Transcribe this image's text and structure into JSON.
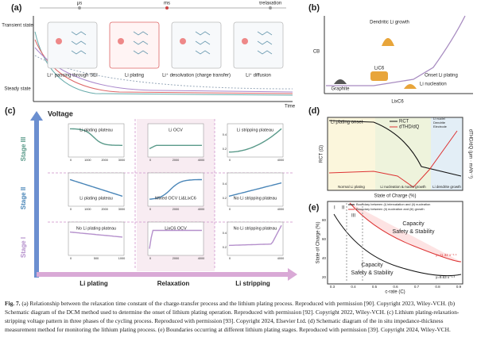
{
  "panel_a": {
    "label": "(a)",
    "state_top": "Transient state",
    "state_bottom": "Steady state",
    "x_label": "Time",
    "time_marks": [
      "μs",
      "ms",
      "τrelaxation"
    ],
    "steps": [
      "Li⁺ passing through SEI",
      "Li plating",
      "Li⁺ desolvation (charge transfer)",
      "Li⁺ diffusion"
    ]
  },
  "panel_b": {
    "label": "(b)",
    "y_label": "CB",
    "x_label": "LixC6",
    "dendrite": "Dendritic Li growth",
    "lic6": "LiC6",
    "onset": "Onset Li plating",
    "graphite": "Graphite",
    "nucleation": "Li nucleation"
  },
  "panel_c": {
    "label": "(c)",
    "y_label": "Voltage",
    "stages": [
      "Stage III",
      "Stage II",
      "Stage I"
    ],
    "columns": [
      "Li plating",
      "Relaxation",
      "Li stripping"
    ],
    "cells": [
      {
        "label": "Li plating plateau",
        "xticks": [
          "0",
          "1000",
          "2000",
          "3000"
        ],
        "yticks": []
      },
      {
        "label": "Li OCV",
        "xticks": [
          "0",
          "2000",
          "4000"
        ],
        "yticks": []
      },
      {
        "label": "Li stripping plateau",
        "xticks": [
          "0",
          "4000"
        ],
        "yticks": [
          "0.2",
          "0.4"
        ]
      },
      {
        "label": "Li plating plateau",
        "xticks": [
          "0",
          "1000",
          "2000",
          "3000"
        ],
        "yticks": []
      },
      {
        "label": "Mixed OCV Li&LixC6",
        "xticks": [
          "0",
          "2000",
          "4000"
        ],
        "yticks": []
      },
      {
        "label": "No Li stripping plateau",
        "xticks": [
          "0",
          "4000"
        ],
        "yticks": [
          "0.2",
          "0.4"
        ]
      },
      {
        "label": "No Li plating plateau",
        "xticks": [
          "0",
          "500",
          "1000"
        ],
        "yticks": []
      },
      {
        "label": "LixC6 OCV",
        "xticks": [
          "0",
          "2000",
          "4000"
        ],
        "yticks": []
      },
      {
        "label": "No Li stripping plateau",
        "xticks": [
          "0",
          "4000"
        ],
        "yticks": [
          "0.2",
          "0.4"
        ]
      }
    ]
  },
  "panel_d": {
    "label": "(d)",
    "onset": "Li plating onset",
    "legend": [
      "RCT",
      "dTHD/dQ"
    ],
    "y_label": "RCT (Ω)",
    "y2_label": "dTHD/dQ (μm · mAh⁻¹)",
    "x_label": "State of Charge (%)",
    "regions": [
      "Normal Li plating",
      "Li nucleation & nuclei growth",
      "Li dendrite growth"
    ],
    "icons": [
      "Li nuclei",
      "Dendrite",
      "Electrode"
    ]
  },
  "panel_e": {
    "label": "(e)",
    "legend": [
      "Boundary between (i) intercalation and (ii) nucleation",
      "Boundary between (ii) nucleation and (iii) growth"
    ],
    "y_label": "State of Charge (%)",
    "x_label": "c-rate (C)",
    "xticks": [
      "0.3",
      "0.4",
      "0.5",
      "0.6",
      "0.7",
      "0.8",
      "0.9"
    ],
    "yticks": [
      "20",
      "40",
      "60",
      "80"
    ],
    "regions": [
      "I",
      "II",
      "III"
    ],
    "upper": [
      "Capacity",
      "Safety & Stability"
    ],
    "lower": [
      "Capacity",
      "Safety & Stability"
    ],
    "fits": [
      "y=11.32 x⁻¹·⁴",
      "y=9.63 x⁻¹·³"
    ]
  },
  "caption": {
    "lead": "Fig. 7.",
    "text": "(a) Relationship between the relaxation time constant of the charge-transfer process and the lithium plating process. Reproduced with permission [90]. Copyright 2023, Wiley-VCH. (b) Schematic diagram of the DCM method used to determine the onset of lithium plating operation. Reproduced with permission [92]. Copyright 2022, Wiley-VCH. (c) Lithium plating-relaxation-stripping voltage pattern in three phases of the cycling process. Reproduced with permission [93]. Copyright 2024, Elsevier Ltd. (d) Schematic diagram of the in situ impedance-thickness measurement method for monitoring the lithium plating process. (e) Boundaries occurring at different lithium plating stages. Reproduced with permission [39]. Copyright 2024, Wiley-VCH."
  }
}
